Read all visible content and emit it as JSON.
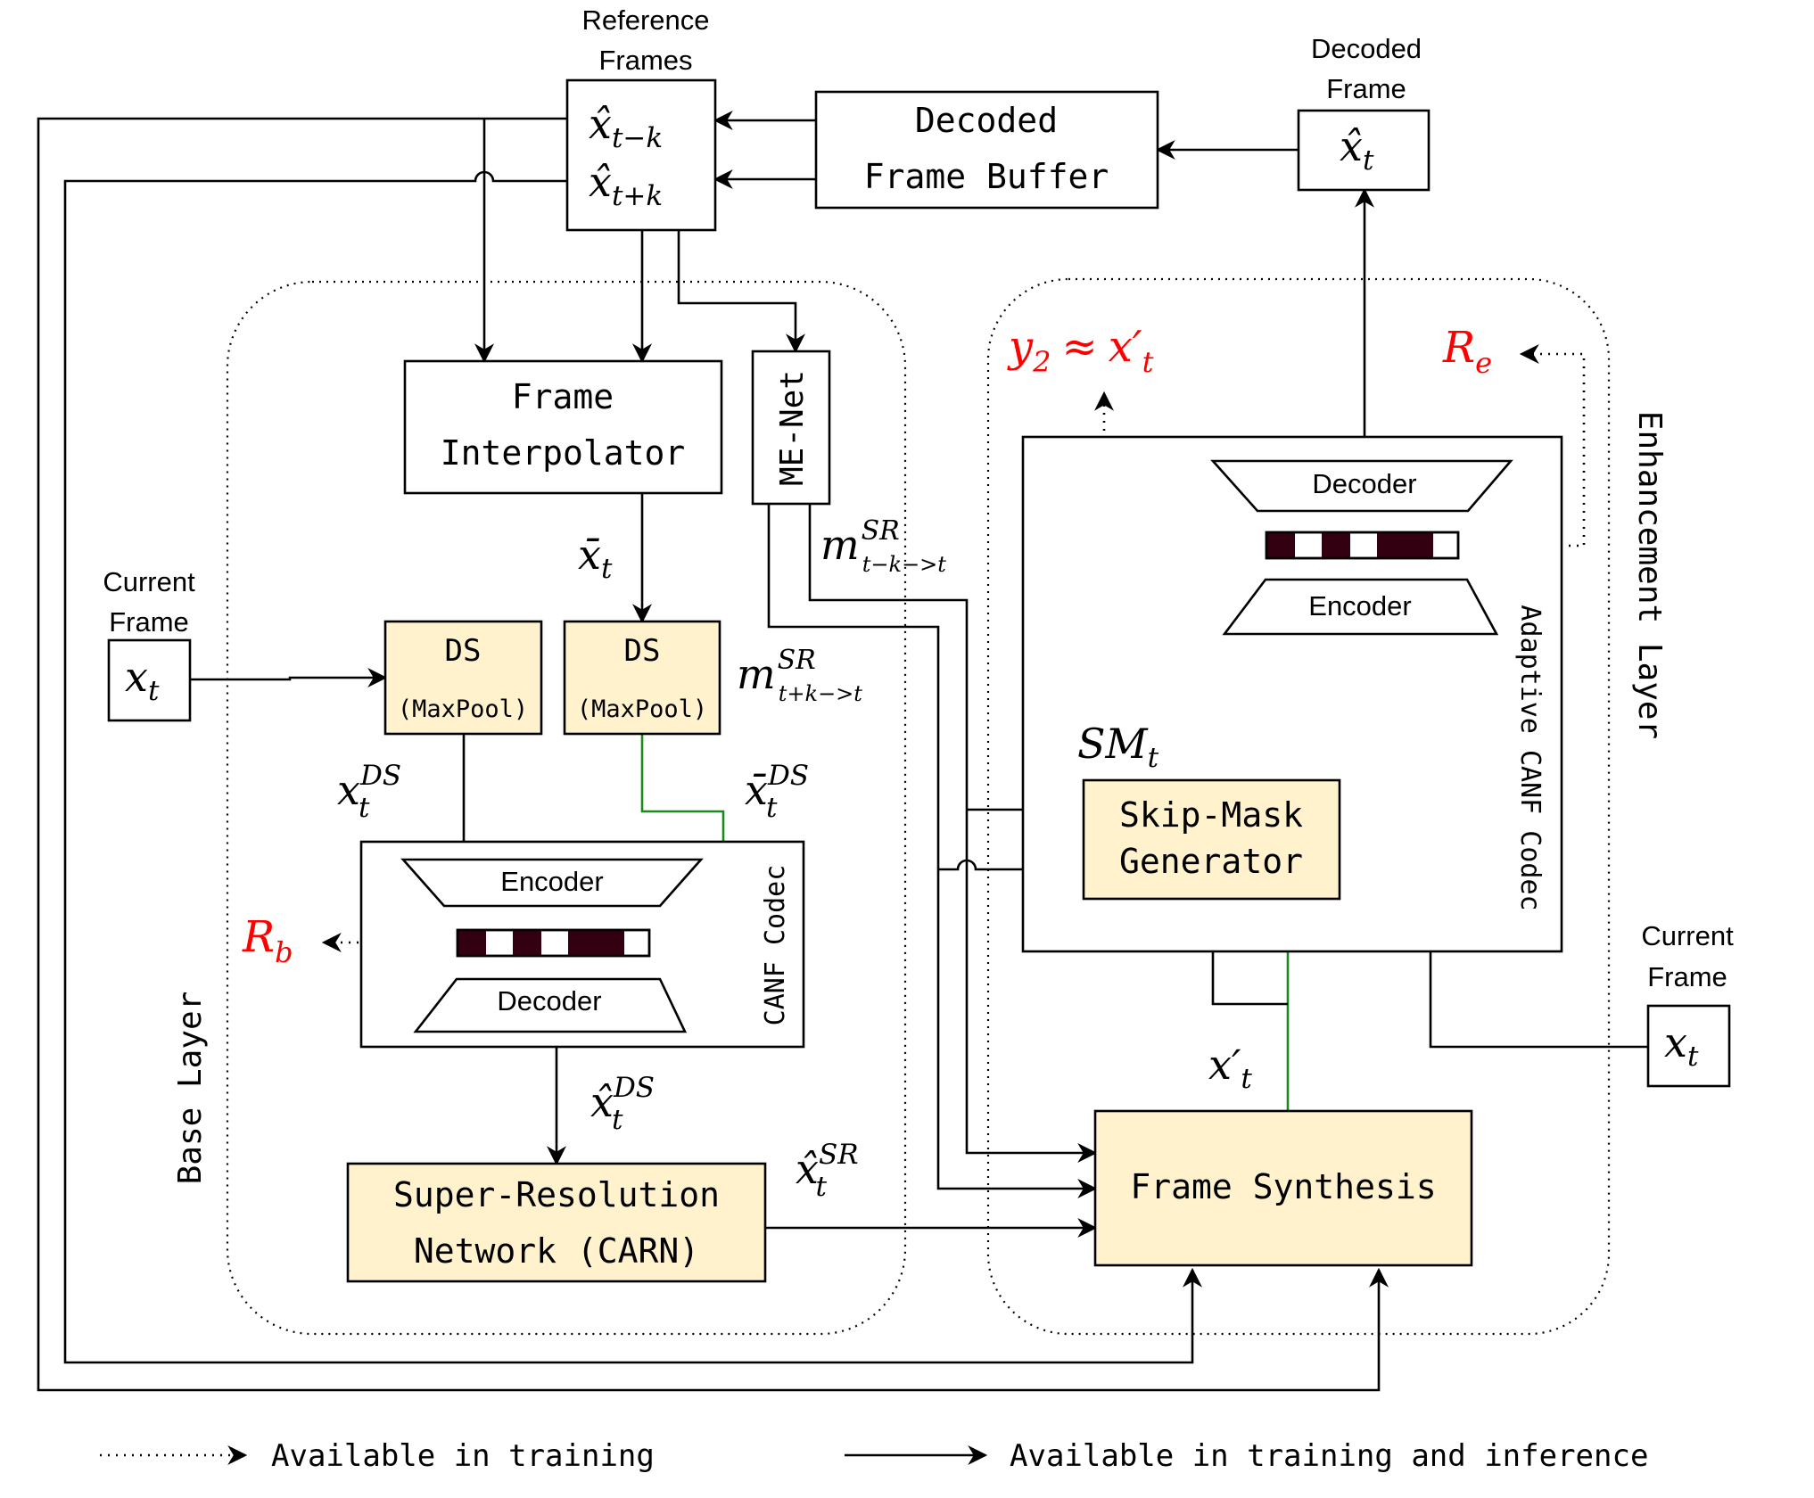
{
  "colors": {
    "yellow_fill": "#fff2cc",
    "green_flow": "#1a8a1a",
    "rate_red": "#ff0000",
    "latent_dark": "#330011"
  },
  "reference": {
    "title_1": "Reference",
    "title_2": "Frames",
    "sym_1": "x̂",
    "sub_1": "t−k",
    "sym_2": "x̂",
    "sub_2": "t+k"
  },
  "buffer": {
    "line_1": "Decoded",
    "line_2": "Frame Buffer"
  },
  "decoded": {
    "title_1": "Decoded",
    "title_2": "Frame",
    "sym": "x̂",
    "sub": "t"
  },
  "base": {
    "region_label": "Base Layer",
    "frame_interpolator_1": "Frame",
    "frame_interpolator_2": "Interpolator",
    "me_net": "ME-Net",
    "current_title_1": "Current",
    "current_title_2": "Frame",
    "current_sym": "x",
    "current_sub": "t",
    "ds_1_title": "DS",
    "ds_1_sub": "(MaxPool)",
    "ds_2_title": "DS",
    "ds_2_sub": "(MaxPool)",
    "xbar_sym": "x̄",
    "xbar_sub": "t",
    "m1_sym": "m",
    "m1_sup": "SR",
    "m1_sub": "t−k−>t",
    "m2_sym": "m",
    "m2_sup": "SR",
    "m2_sub": "t+k−>t",
    "xds_sym": "x",
    "xds_sup": "DS",
    "xds_sub": "t",
    "xbards_sym": "x̄",
    "xbards_sup": "DS",
    "xbards_sub": "t",
    "codec_encoder": "Encoder",
    "codec_decoder": "Decoder",
    "codec_label": "CANF Codec",
    "rate_sym": "R",
    "rate_sub": "b",
    "xhatds_sym": "x̂",
    "xhatds_sup": "DS",
    "xhatds_sub": "t",
    "sr_1": "Super-Resolution",
    "sr_2": "Network (CARN)",
    "xhatsr_sym": "x̂",
    "xhatsr_sup": "SR",
    "xhatsr_sub": "t"
  },
  "enhancement": {
    "region_label": "Enhancement Layer",
    "y2_sym": "y",
    "y2_sub": "2",
    "y2_approx": "≈",
    "y2_rhs": "x′",
    "y2_rhs_sub": "t",
    "re_sym": "R",
    "re_sub": "e",
    "decoder": "Decoder",
    "encoder": "Encoder",
    "codec_label": "Adaptive CANF Codec",
    "sm_sym": "SM",
    "sm_sub": "t",
    "skip_1": "Skip-Mask",
    "skip_2": "Generator",
    "xprime_sym": "x′",
    "xprime_sub": "t",
    "synthesis": "Frame Synthesis",
    "current_title_1": "Current",
    "current_title_2": "Frame",
    "current_sym": "x",
    "current_sub": "t"
  },
  "legend": {
    "dotted": "Available in training",
    "solid": "Available in training and inference"
  }
}
